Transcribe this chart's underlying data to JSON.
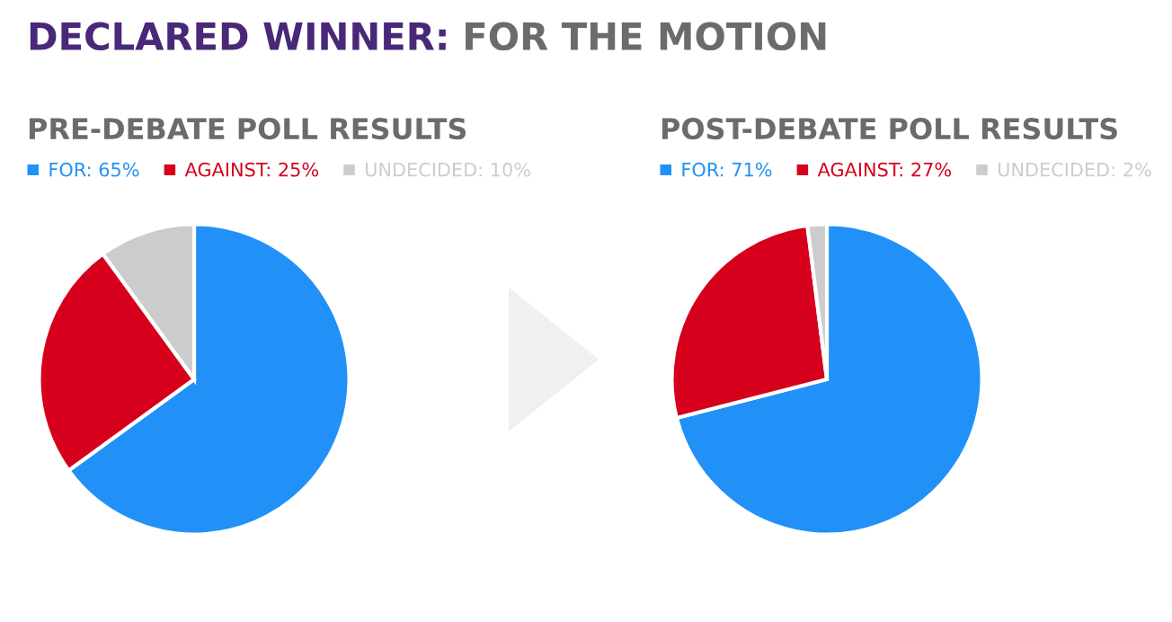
{
  "chart_data": [
    {
      "type": "other",
      "title": "DECLARED WINNER: FOR THE MOTION"
    },
    {
      "type": "pie",
      "title": "PRE-DEBATE POLL RESULTS",
      "categories": [
        "FOR",
        "AGAINST",
        "UNDECIDED"
      ],
      "values": [
        65,
        25,
        10
      ],
      "value_labels": [
        "65%",
        "25%",
        "10%"
      ],
      "colors": [
        "#2191f8",
        "#d6001c",
        "#cccccc"
      ],
      "legend": "top"
    },
    {
      "type": "pie",
      "title": "POST-DEBATE POLL RESULTS",
      "categories": [
        "FOR",
        "AGAINST",
        "UNDECIDED"
      ],
      "values": [
        71,
        27,
        2
      ],
      "value_labels": [
        "71%",
        "27%",
        "2%"
      ],
      "colors": [
        "#2191f8",
        "#d6001c",
        "#cccccc"
      ],
      "legend": "top"
    }
  ]
}
